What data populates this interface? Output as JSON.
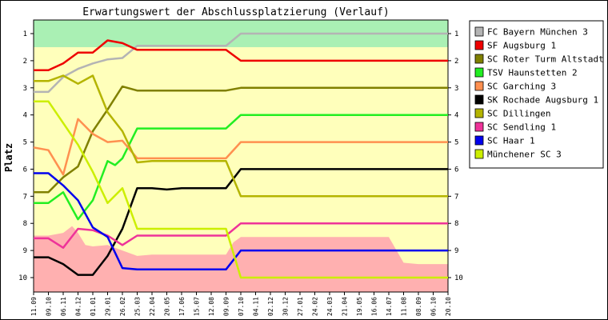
{
  "chart_data": {
    "type": "line",
    "title": "Erwartungswert der Abschlussplatzierung (Verlauf)",
    "ylabel": "Platz",
    "xlabel": "",
    "ylim": [
      1,
      10
    ],
    "y_inverted": true,
    "y_ticks": [
      "1",
      "2",
      "3",
      "4",
      "5",
      "6",
      "7",
      "8",
      "9",
      "10"
    ],
    "x_ticks": [
      "11.09",
      "09.10",
      "06.11",
      "04.12",
      "01.01",
      "29.01",
      "26.02",
      "25.03",
      "22.04",
      "20.05",
      "17.06",
      "15.07",
      "12.08",
      "09.09",
      "07.10",
      "04.11",
      "02.12",
      "30.12",
      "27.01",
      "24.02",
      "24.03",
      "21.04",
      "19.05",
      "16.06",
      "14.07",
      "11.08",
      "08.09",
      "06.10",
      "20.10"
    ],
    "grid": false,
    "legend_position": "right",
    "bands": {
      "top_color": "#aaf0b4",
      "mid_color": "#ffffbb",
      "bottom_color": "#ffb0b0",
      "top": [
        [
          0,
          1.5
        ],
        [
          28,
          1.5
        ]
      ],
      "bottom": [
        [
          0,
          8.45
        ],
        [
          1,
          8.45
        ],
        [
          2,
          8.35
        ],
        [
          2.6,
          8.1
        ],
        [
          3,
          8.35
        ],
        [
          3.5,
          8.8
        ],
        [
          4,
          8.85
        ],
        [
          5,
          8.8
        ],
        [
          6,
          9.0
        ],
        [
          7,
          9.2
        ],
        [
          8,
          9.15
        ],
        [
          9,
          9.15
        ],
        [
          10,
          9.15
        ],
        [
          11,
          9.15
        ],
        [
          12,
          9.15
        ],
        [
          13,
          9.15
        ],
        [
          13.5,
          8.7
        ],
        [
          14,
          8.5
        ],
        [
          15,
          8.5
        ],
        [
          16,
          8.5
        ],
        [
          17,
          8.5
        ],
        [
          18,
          8.5
        ],
        [
          19,
          8.5
        ],
        [
          20,
          8.5
        ],
        [
          21,
          8.5
        ],
        [
          22,
          8.5
        ],
        [
          23,
          8.5
        ],
        [
          24,
          8.5
        ],
        [
          25,
          9.45
        ],
        [
          26,
          9.5
        ],
        [
          27,
          9.5
        ],
        [
          28,
          9.5
        ]
      ]
    },
    "series": [
      {
        "name": "FC Bayern München 3",
        "color": "#b4b4b4",
        "x": [
          0,
          1,
          2,
          3,
          4,
          5,
          6,
          7,
          8,
          9,
          10,
          11,
          12,
          13,
          14,
          15,
          16,
          17,
          18,
          19,
          20,
          21,
          22,
          23,
          24,
          25,
          26,
          27,
          28
        ],
        "y": [
          3.15,
          3.15,
          2.6,
          2.3,
          2.1,
          1.95,
          1.9,
          1.45,
          1.45,
          1.45,
          1.45,
          1.45,
          1.45,
          1.45,
          1.0,
          1.0,
          1.0,
          1.0,
          1.0,
          1.0,
          1.0,
          1.0,
          1.0,
          1.0,
          1.0,
          1.0,
          1.0,
          1.0,
          1.0
        ]
      },
      {
        "name": "SF Augsburg 1",
        "color": "#ee0000",
        "x": [
          0,
          1,
          2,
          3,
          4,
          5,
          6,
          7,
          8,
          9,
          10,
          11,
          12,
          13,
          14,
          15,
          16,
          17,
          18,
          19,
          20,
          21,
          22,
          23,
          24,
          25,
          26,
          27,
          28
        ],
        "y": [
          2.35,
          2.35,
          2.1,
          1.7,
          1.7,
          1.25,
          1.35,
          1.6,
          1.6,
          1.6,
          1.6,
          1.6,
          1.6,
          1.6,
          2.0,
          2.0,
          2.0,
          2.0,
          2.0,
          2.0,
          2.0,
          2.0,
          2.0,
          2.0,
          2.0,
          2.0,
          2.0,
          2.0,
          2.0
        ]
      },
      {
        "name": "SC Roter Turm Altstadt 1",
        "color": "#808000",
        "x": [
          0,
          1,
          2,
          3,
          4,
          5,
          6,
          7,
          8,
          9,
          10,
          11,
          12,
          13,
          14,
          15,
          16,
          17,
          18,
          19,
          20,
          21,
          22,
          23,
          24,
          25,
          26,
          27,
          28
        ],
        "y": [
          6.85,
          6.85,
          6.3,
          5.9,
          4.6,
          3.8,
          2.95,
          3.1,
          3.1,
          3.1,
          3.1,
          3.1,
          3.1,
          3.1,
          3.0,
          3.0,
          3.0,
          3.0,
          3.0,
          3.0,
          3.0,
          3.0,
          3.0,
          3.0,
          3.0,
          3.0,
          3.0,
          3.0,
          3.0
        ]
      },
      {
        "name": "TSV Haunstetten 2",
        "color": "#22ee22",
        "x": [
          0,
          1,
          2,
          3,
          4,
          5,
          5.5,
          6,
          7,
          8,
          9,
          10,
          11,
          12,
          13,
          14,
          15,
          16,
          17,
          18,
          19,
          20,
          21,
          22,
          23,
          24,
          25,
          26,
          27,
          28
        ],
        "y": [
          7.25,
          7.25,
          6.85,
          7.85,
          7.15,
          5.7,
          5.85,
          5.6,
          4.5,
          4.5,
          4.5,
          4.5,
          4.5,
          4.5,
          4.5,
          4.0,
          4.0,
          4.0,
          4.0,
          4.0,
          4.0,
          4.0,
          4.0,
          4.0,
          4.0,
          4.0,
          4.0,
          4.0,
          4.0,
          4.0
        ]
      },
      {
        "name": "SC Garching 3",
        "color": "#ff9050",
        "x": [
          0,
          1,
          2,
          3,
          4,
          5,
          6,
          7,
          8,
          9,
          10,
          11,
          12,
          13,
          14,
          15,
          16,
          17,
          18,
          19,
          20,
          21,
          22,
          23,
          24,
          25,
          26,
          27,
          28
        ],
        "y": [
          5.2,
          5.3,
          6.2,
          4.15,
          4.7,
          5.0,
          4.95,
          5.6,
          5.6,
          5.6,
          5.6,
          5.6,
          5.6,
          5.6,
          5.0,
          5.0,
          5.0,
          5.0,
          5.0,
          5.0,
          5.0,
          5.0,
          5.0,
          5.0,
          5.0,
          5.0,
          5.0,
          5.0,
          5.0
        ]
      },
      {
        "name": "SK Rochade Augsburg 1",
        "color": "#000000",
        "x": [
          0,
          1,
          2,
          3,
          4,
          5,
          6,
          7,
          8,
          9,
          10,
          11,
          12,
          13,
          14,
          15,
          16,
          17,
          18,
          19,
          20,
          21,
          22,
          23,
          24,
          25,
          26,
          27,
          28
        ],
        "y": [
          9.25,
          9.25,
          9.5,
          9.9,
          9.9,
          9.2,
          8.2,
          6.7,
          6.7,
          6.75,
          6.7,
          6.7,
          6.7,
          6.7,
          6.0,
          6.0,
          6.0,
          6.0,
          6.0,
          6.0,
          6.0,
          6.0,
          6.0,
          6.0,
          6.0,
          6.0,
          6.0,
          6.0,
          6.0
        ]
      },
      {
        "name": "SC Dillingen",
        "color": "#b4b400",
        "x": [
          0,
          1,
          2,
          3,
          4,
          5,
          6,
          7,
          8,
          9,
          10,
          11,
          12,
          13,
          14,
          15,
          16,
          17,
          18,
          19,
          20,
          21,
          22,
          23,
          24,
          25,
          26,
          27,
          28
        ],
        "y": [
          2.75,
          2.75,
          2.55,
          2.85,
          2.55,
          3.9,
          4.6,
          5.75,
          5.7,
          5.7,
          5.7,
          5.7,
          5.7,
          5.7,
          7.0,
          7.0,
          7.0,
          7.0,
          7.0,
          7.0,
          7.0,
          7.0,
          7.0,
          7.0,
          7.0,
          7.0,
          7.0,
          7.0,
          7.0
        ]
      },
      {
        "name": "SC Sendling 1",
        "color": "#ee3399",
        "x": [
          0,
          1,
          2,
          3,
          4,
          5,
          6,
          7,
          8,
          9,
          10,
          11,
          12,
          13,
          14,
          15,
          16,
          17,
          18,
          19,
          20,
          21,
          22,
          23,
          24,
          25,
          26,
          27,
          28
        ],
        "y": [
          8.55,
          8.55,
          8.9,
          8.2,
          8.25,
          8.45,
          8.8,
          8.45,
          8.45,
          8.45,
          8.45,
          8.45,
          8.45,
          8.45,
          8.0,
          8.0,
          8.0,
          8.0,
          8.0,
          8.0,
          8.0,
          8.0,
          8.0,
          8.0,
          8.0,
          8.0,
          8.0,
          8.0,
          8.0
        ]
      },
      {
        "name": "SC Haar 1",
        "color": "#0000ee",
        "x": [
          0,
          1,
          2,
          3,
          4,
          5,
          6,
          7,
          8,
          9,
          10,
          11,
          12,
          13,
          14,
          15,
          16,
          17,
          18,
          19,
          20,
          21,
          22,
          23,
          24,
          25,
          26,
          27,
          28
        ],
        "y": [
          6.15,
          6.15,
          6.6,
          7.15,
          8.15,
          8.5,
          9.65,
          9.7,
          9.7,
          9.7,
          9.7,
          9.7,
          9.7,
          9.7,
          9.0,
          9.0,
          9.0,
          9.0,
          9.0,
          9.0,
          9.0,
          9.0,
          9.0,
          9.0,
          9.0,
          9.0,
          9.0,
          9.0,
          9.0
        ]
      },
      {
        "name": "Münchener SC 3",
        "color": "#ccee00",
        "x": [
          0,
          1,
          2,
          3,
          4,
          5,
          6,
          7,
          8,
          9,
          10,
          11,
          12,
          13,
          14,
          15,
          16,
          17,
          18,
          19,
          20,
          21,
          22,
          23,
          24,
          25,
          26,
          27,
          28
        ],
        "y": [
          3.5,
          3.5,
          4.3,
          5.1,
          6.1,
          7.25,
          6.7,
          8.2,
          8.2,
          8.2,
          8.2,
          8.2,
          8.2,
          8.2,
          10.0,
          10.0,
          10.0,
          10.0,
          10.0,
          10.0,
          10.0,
          10.0,
          10.0,
          10.0,
          10.0,
          10.0,
          10.0,
          10.0,
          10.0
        ]
      }
    ]
  }
}
